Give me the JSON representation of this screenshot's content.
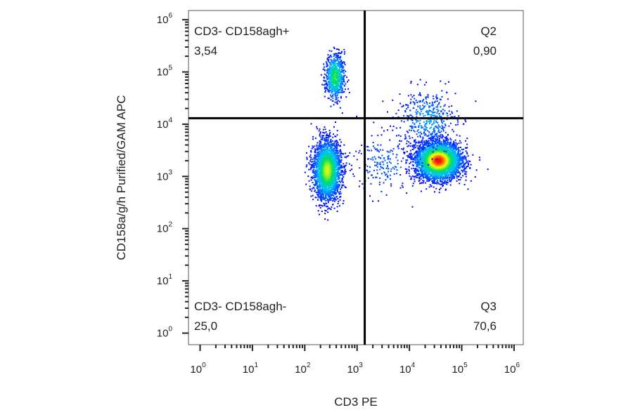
{
  "chart_data": {
    "type": "scatter",
    "plot_style": "flow-cytometry density dot plot",
    "xlabel": "CD3 PE",
    "ylabel": "CD158a/g/h Purified/GAM APC",
    "x_scale": "log10",
    "y_scale": "log10",
    "xlim": [
      0.6,
      1500000
    ],
    "ylim": [
      0.6,
      1500000
    ],
    "x_ticks": [
      {
        "base": "10",
        "exp": "0"
      },
      {
        "base": "10",
        "exp": "1"
      },
      {
        "base": "10",
        "exp": "2"
      },
      {
        "base": "10",
        "exp": "3"
      },
      {
        "base": "10",
        "exp": "4"
      },
      {
        "base": "10",
        "exp": "5"
      },
      {
        "base": "10",
        "exp": "6"
      }
    ],
    "y_ticks": [
      {
        "base": "10",
        "exp": "0"
      },
      {
        "base": "10",
        "exp": "1"
      },
      {
        "base": "10",
        "exp": "2"
      },
      {
        "base": "10",
        "exp": "3"
      },
      {
        "base": "10",
        "exp": "4"
      },
      {
        "base": "10",
        "exp": "5"
      },
      {
        "base": "10",
        "exp": "6"
      }
    ],
    "gates": {
      "x_threshold": 1400,
      "y_threshold": 13000
    },
    "quadrants": [
      {
        "name": "CD3- CD158agh+",
        "value": "3,54",
        "position": "top-left"
      },
      {
        "name": "Q2",
        "value": "0,90",
        "position": "top-right"
      },
      {
        "name": "CD3- CD158agh-",
        "value": "25,0",
        "position": "bottom-left"
      },
      {
        "name": "Q3",
        "value": "70,6",
        "position": "bottom-right"
      }
    ],
    "populations": [
      {
        "x": 270,
        "y": 1300,
        "spread_x_log": 0.13,
        "spread_y_log": 0.28,
        "events": 2600,
        "max_density": 0.75
      },
      {
        "x": 380,
        "y": 80000,
        "spread_x_log": 0.09,
        "spread_y_log": 0.22,
        "events": 700,
        "max_density": 0.6
      },
      {
        "x": 36000,
        "y": 2000,
        "spread_x_log": 0.22,
        "spread_y_log": 0.18,
        "events": 3600,
        "max_density": 1.0
      },
      {
        "x": 22000,
        "y": 12000,
        "spread_x_log": 0.28,
        "spread_y_log": 0.3,
        "events": 450,
        "max_density": 0.25
      },
      {
        "x": 3500,
        "y": 1800,
        "spread_x_log": 0.35,
        "spread_y_log": 0.3,
        "events": 220,
        "max_density": 0.15
      }
    ],
    "colors": {
      "density_low": "#0000ff",
      "density_mid_low": "#00c0ff",
      "density_mid": "#00e060",
      "density_mid_high": "#ffff00",
      "density_high": "#ff0000",
      "gate_line": "#000000",
      "frame": "#555555"
    }
  }
}
